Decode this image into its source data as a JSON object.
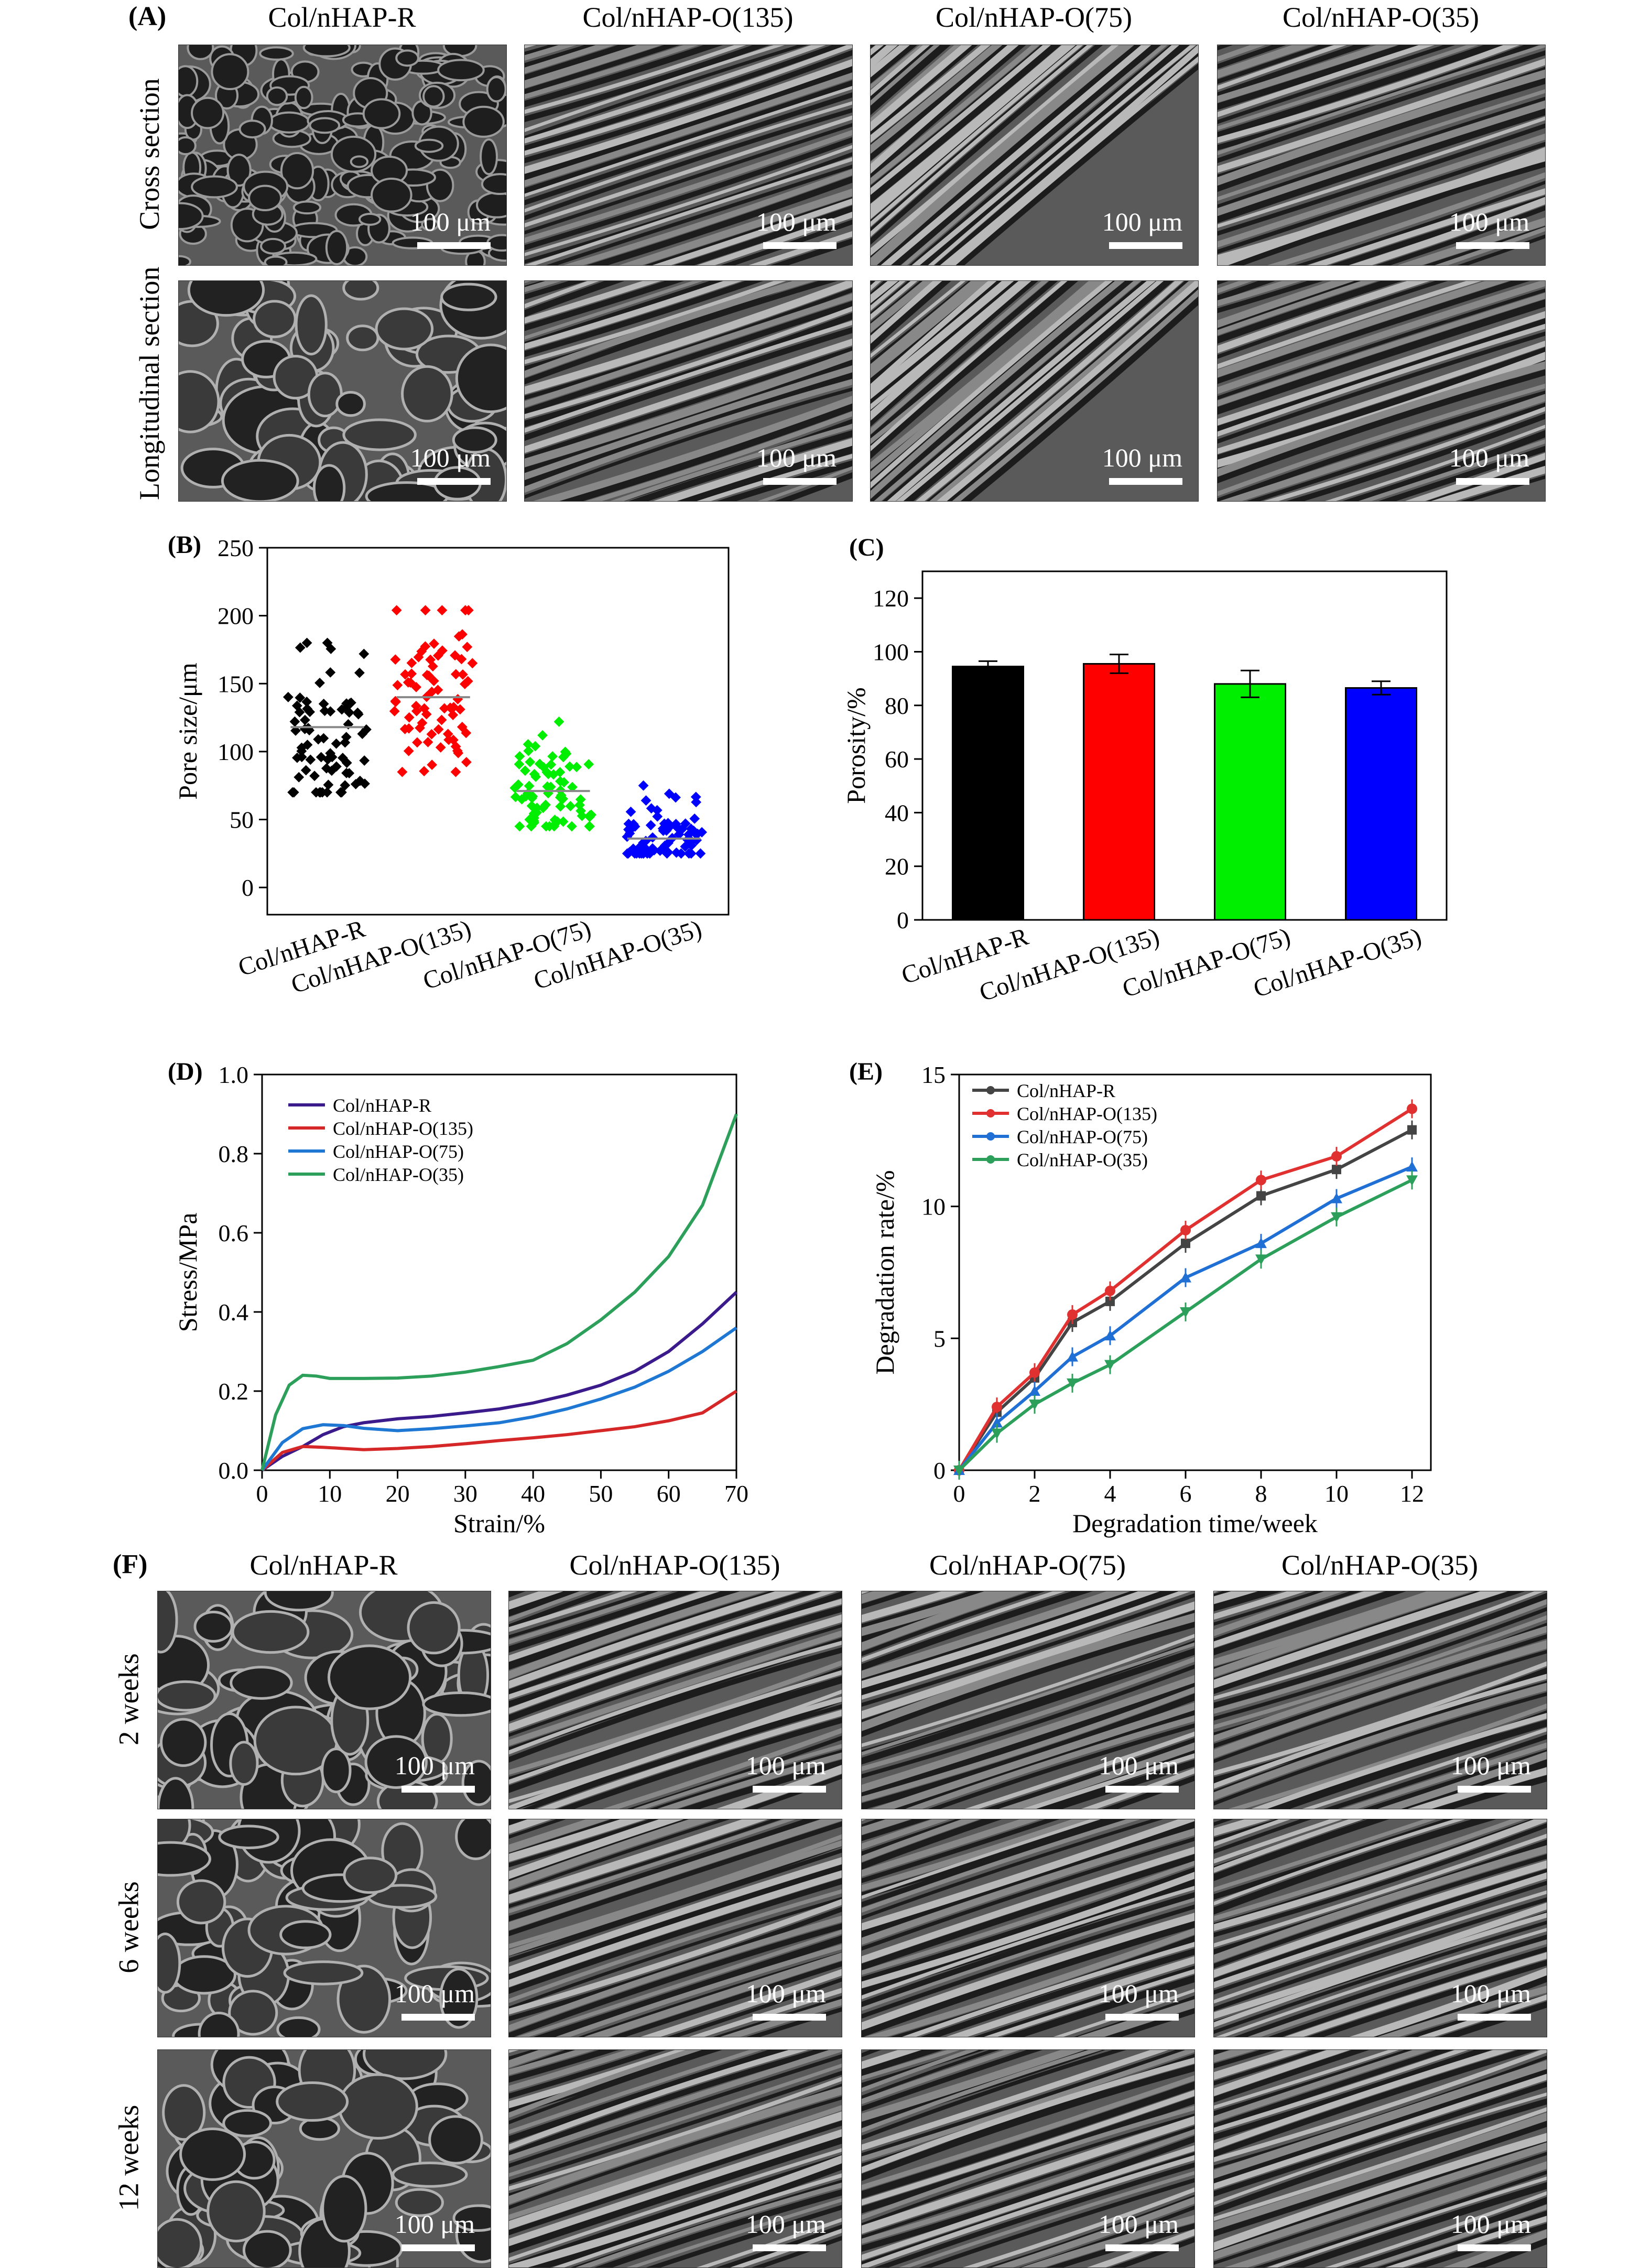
{
  "panel_A": {
    "label": "(A)",
    "columns": [
      "Col/nHAP-R",
      "Col/nHAP-O(135)",
      "Col/nHAP-O(75)",
      "Col/nHAP-O(35)"
    ],
    "rows": [
      "Cross section",
      "Longitudinal section"
    ],
    "scale_bar": "100 μm"
  },
  "panel_F": {
    "label": "(F)",
    "columns": [
      "Col/nHAP-R",
      "Col/nHAP-O(135)",
      "Col/nHAP-O(75)",
      "Col/nHAP-O(35)"
    ],
    "rows": [
      "2 weeks",
      "6 weeks",
      "12 weeks"
    ],
    "scale_bar": "100 μm"
  },
  "chart_data": [
    {
      "panel": "(B)",
      "type": "scatter",
      "title": "",
      "ylabel": "Pore size/μm",
      "ylim": [
        -20,
        250
      ],
      "yticks": [
        0,
        50,
        100,
        150,
        200,
        250
      ],
      "categories": [
        "Col/nHAP-R",
        "Col/nHAP-O(135)",
        "Col/nHAP-O(75)",
        "Col/nHAP-O(35)"
      ],
      "colors": [
        "#000000",
        "#ff0000",
        "#00ee00",
        "#0000ff"
      ],
      "series": [
        {
          "name": "Col/nHAP-R",
          "mean": 118,
          "sd": 5,
          "min": 70,
          "max": 180
        },
        {
          "name": "Col/nHAP-O(135)",
          "mean": 140,
          "sd": 5,
          "min": 85,
          "max": 204
        },
        {
          "name": "Col/nHAP-O(75)",
          "mean": 71,
          "sd": 3,
          "min": 45,
          "max": 122
        },
        {
          "name": "Col/nHAP-O(35)",
          "mean": 36,
          "sd": 2,
          "min": 25,
          "max": 75
        }
      ]
    },
    {
      "panel": "(C)",
      "type": "bar",
      "title": "",
      "ylabel": "Porosity/%",
      "ylim": [
        0,
        130
      ],
      "yticks": [
        0,
        20,
        40,
        60,
        80,
        100,
        120
      ],
      "categories": [
        "Col/nHAP-R",
        "Col/nHAP-O(135)",
        "Col/nHAP-O(75)",
        "Col/nHAP-O(35)"
      ],
      "values": [
        94.5,
        95.5,
        88,
        86.5
      ],
      "errors": [
        2,
        3.5,
        5,
        2.5
      ],
      "colors": [
        "#000000",
        "#ff0000",
        "#00ee00",
        "#0000ff"
      ]
    },
    {
      "panel": "(D)",
      "type": "line",
      "title": "",
      "xlabel": "Strain/%",
      "ylabel": "Stress/MPa",
      "xlim": [
        0,
        70
      ],
      "ylim": [
        0,
        1.0
      ],
      "xticks": [
        0,
        10,
        20,
        30,
        40,
        50,
        60,
        70
      ],
      "yticks": [
        0.0,
        0.2,
        0.4,
        0.6,
        0.8,
        1.0
      ],
      "ytick_labels": [
        "0.0",
        "0.2",
        "0.4",
        "0.6",
        "0.8",
        "1.0"
      ],
      "legend_position": "top-left",
      "series": [
        {
          "name": "Col/nHAP-R",
          "color": "#3b1a8c",
          "x": [
            0,
            3,
            6,
            9,
            12,
            15,
            20,
            25,
            30,
            35,
            40,
            45,
            50,
            55,
            60,
            65,
            70
          ],
          "y": [
            0,
            0.035,
            0.06,
            0.09,
            0.11,
            0.12,
            0.13,
            0.136,
            0.145,
            0.155,
            0.17,
            0.19,
            0.215,
            0.25,
            0.3,
            0.37,
            0.45
          ]
        },
        {
          "name": "Col/nHAP-O(135)",
          "color": "#d62728",
          "x": [
            0,
            3,
            6,
            9,
            12,
            15,
            20,
            25,
            30,
            35,
            40,
            45,
            50,
            55,
            60,
            65,
            70
          ],
          "y": [
            0,
            0.045,
            0.06,
            0.058,
            0.055,
            0.052,
            0.055,
            0.06,
            0.067,
            0.075,
            0.082,
            0.09,
            0.1,
            0.11,
            0.125,
            0.145,
            0.2
          ]
        },
        {
          "name": "Col/nHAP-O(75)",
          "color": "#1f77d4",
          "x": [
            0,
            3,
            6,
            9,
            12,
            15,
            20,
            25,
            30,
            35,
            40,
            45,
            50,
            55,
            60,
            65,
            70
          ],
          "y": [
            0,
            0.07,
            0.105,
            0.115,
            0.113,
            0.106,
            0.1,
            0.105,
            0.112,
            0.12,
            0.135,
            0.155,
            0.18,
            0.21,
            0.25,
            0.3,
            0.36
          ]
        },
        {
          "name": "Col/nHAP-O(35)",
          "color": "#2ca05a",
          "x": [
            0,
            2,
            4,
            6,
            8,
            10,
            15,
            20,
            25,
            30,
            35,
            40,
            45,
            50,
            55,
            60,
            65,
            70
          ],
          "y": [
            0,
            0.14,
            0.215,
            0.24,
            0.238,
            0.232,
            0.232,
            0.233,
            0.238,
            0.248,
            0.262,
            0.278,
            0.32,
            0.38,
            0.45,
            0.54,
            0.67,
            0.9
          ]
        }
      ]
    },
    {
      "panel": "(E)",
      "type": "line",
      "title": "",
      "xlabel": "Degradation time/week",
      "ylabel": "Degradation rate/%",
      "xlim": [
        0,
        12.5
      ],
      "ylim": [
        0,
        15
      ],
      "xticks": [
        0,
        2,
        4,
        6,
        8,
        10,
        12
      ],
      "yticks": [
        0,
        5,
        10,
        15
      ],
      "legend_position": "top-left",
      "series": [
        {
          "name": "Col/nHAP-R",
          "color": "#444444",
          "marker": "square",
          "x": [
            0,
            1,
            2,
            3,
            4,
            6,
            8,
            10,
            12
          ],
          "y": [
            0,
            2.2,
            3.5,
            5.6,
            6.4,
            8.6,
            10.4,
            11.4,
            12.9
          ]
        },
        {
          "name": "Col/nHAP-O(135)",
          "color": "#e03030",
          "marker": "circle",
          "x": [
            0,
            1,
            2,
            3,
            4,
            6,
            8,
            10,
            12
          ],
          "y": [
            0,
            2.4,
            3.7,
            5.9,
            6.8,
            9.1,
            11.0,
            11.9,
            13.7
          ]
        },
        {
          "name": "Col/nHAP-O(75)",
          "color": "#1f6fd4",
          "marker": "triangle-up",
          "x": [
            0,
            1,
            2,
            3,
            4,
            6,
            8,
            10,
            12
          ],
          "y": [
            0,
            1.8,
            3.0,
            4.3,
            5.1,
            7.3,
            8.6,
            10.3,
            11.5
          ]
        },
        {
          "name": "Col/nHAP-O(35)",
          "color": "#2ca05a",
          "marker": "triangle-down",
          "x": [
            0,
            1,
            2,
            3,
            4,
            6,
            8,
            10,
            12
          ],
          "y": [
            0,
            1.4,
            2.5,
            3.3,
            4.0,
            6.0,
            8.0,
            9.6,
            11.0
          ]
        }
      ]
    }
  ]
}
